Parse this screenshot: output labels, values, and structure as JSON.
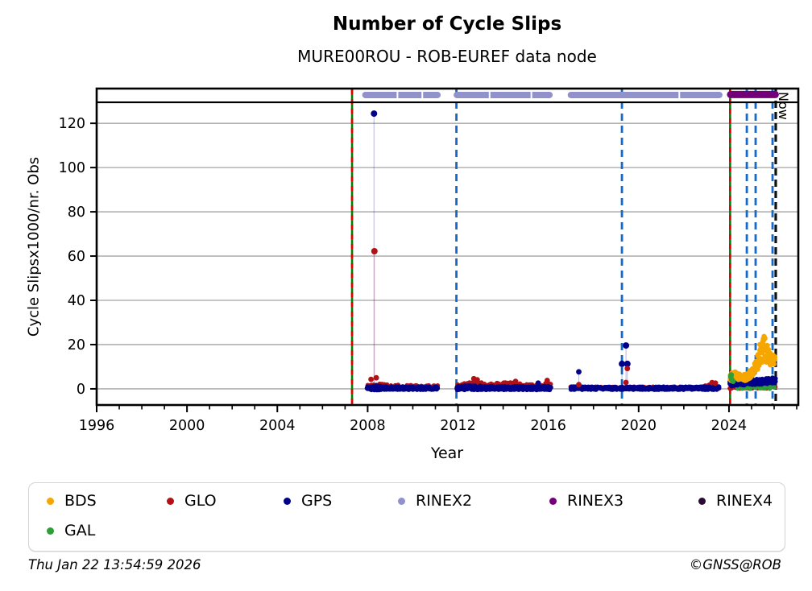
{
  "header": {
    "title": "Number of Cycle Slips",
    "subtitle": "MURE00ROU - ROB-EUREF data node"
  },
  "footer": {
    "timestamp": "Thu Jan 22 13:54:59 2026",
    "copyright": "©GNSS@ROB"
  },
  "legend": {
    "items": [
      {
        "label": "BDS",
        "color": "#f5a700"
      },
      {
        "label": "GLO",
        "color": "#b11117"
      },
      {
        "label": "GPS",
        "color": "#00008b"
      },
      {
        "label": "RINEX2",
        "color": "#9191cc"
      },
      {
        "label": "RINEX3",
        "color": "#730078"
      },
      {
        "label": "RINEX4",
        "color": "#2b0a33"
      },
      {
        "label": "GAL",
        "color": "#2e9e38"
      }
    ]
  },
  "chart_data": {
    "type": "scatter",
    "title": "Number of Cycle Slips",
    "subtitle": "MURE00ROU - ROB-EUREF data node",
    "xlabel": "Year",
    "ylabel": "Cycle Slipsx1000/nr. Obs",
    "xlim": [
      1996,
      2027.07
    ],
    "ylim": [
      -7.3,
      135.7
    ],
    "xticks": [
      1996,
      2000,
      2004,
      2008,
      2012,
      2016,
      2020,
      2024
    ],
    "x_minor_step": 1,
    "yticks": [
      0,
      20,
      40,
      60,
      80,
      100,
      120
    ],
    "grid": "horizontal-only",
    "grid_color": "#b3b3b3",
    "separator_y": 129.5,
    "legend_position": "below",
    "annotations": {
      "now_label": "Now",
      "now_x": 2026.07
    },
    "vlines": [
      {
        "x": 2007.31,
        "type": "green-red-event"
      },
      {
        "x": 2024.05,
        "type": "green-red-event"
      },
      {
        "x": 2011.93,
        "type": "blue-dashed"
      },
      {
        "x": 2019.26,
        "type": "blue-dashed"
      },
      {
        "x": 2024.79,
        "type": "blue-dashed"
      },
      {
        "x": 2025.18,
        "type": "blue-dashed"
      },
      {
        "x": 2025.93,
        "type": "blue-dashed"
      },
      {
        "x": 2026.07,
        "type": "now-black-dashed"
      }
    ],
    "vline_colors": {
      "green": "#008000",
      "red": "#dd0000",
      "blue": "#1569c7",
      "now": "#111111"
    },
    "top_bands": [
      {
        "name": "RINEX2",
        "color": "#9191cc",
        "y": 132.8,
        "segments": [
          [
            2007.9,
            2011.09
          ],
          [
            2011.95,
            2016.05
          ],
          [
            2017.0,
            2023.57
          ]
        ],
        "notches": [
          2009.32,
          2010.42,
          2013.4,
          2015.25,
          2021.8
        ]
      },
      {
        "name": "RINEX3",
        "color": "#730078",
        "y": 133.0,
        "segments": [
          [
            2024.07,
            2026.05
          ]
        ],
        "notches": []
      }
    ],
    "series_meta": {
      "draw_order": [
        "glo",
        "gal",
        "gps",
        "bds"
      ],
      "glo": {
        "label": "GLO",
        "color": "#b11117",
        "r": 2.9
      },
      "gal": {
        "label": "GAL",
        "color": "#2e9e38",
        "r": 2.8
      },
      "gps": {
        "label": "GPS",
        "color": "#00008b",
        "r": 3.0
      },
      "bds": {
        "label": "BDS",
        "color": "#f5a700",
        "r": 3.2
      }
    },
    "bands": {
      "glo": [
        {
          "x0": 2008.0,
          "x1": 2011.1,
          "density": 1.2,
          "profile": [
            [
              2008.0,
              1.0,
              0.9
            ],
            [
              2008.5,
              1.3,
              1.1
            ],
            [
              2009.2,
              1.0,
              0.8
            ],
            [
              2010.0,
              0.9,
              0.7
            ],
            [
              2011.1,
              0.8,
              0.7
            ]
          ]
        },
        {
          "x0": 2011.95,
          "x1": 2016.1,
          "density": 1.2,
          "profile": [
            [
              2011.95,
              1.1,
              1.0
            ],
            [
              2012.5,
              1.7,
              1.4
            ],
            [
              2012.8,
              2.2,
              1.7
            ],
            [
              2013.2,
              1.3,
              1.1
            ],
            [
              2013.8,
              1.6,
              1.2
            ],
            [
              2014.5,
              1.6,
              1.3
            ],
            [
              2015.1,
              1.1,
              0.9
            ],
            [
              2015.6,
              1.0,
              0.8
            ],
            [
              2016.0,
              1.6,
              1.4
            ],
            [
              2016.1,
              1.3,
              1.1
            ]
          ]
        },
        {
          "x0": 2017.0,
          "x1": 2019.02,
          "density": 1.0,
          "profile": [
            [
              2017.0,
              0.5,
              0.5
            ],
            [
              2019.02,
              0.45,
              0.45
            ]
          ]
        },
        {
          "x0": 2019.18,
          "x1": 2023.55,
          "density": 1.0,
          "profile": [
            [
              2019.18,
              0.45,
              0.45
            ],
            [
              2022.8,
              0.5,
              0.5
            ],
            [
              2023.25,
              1.3,
              1.0
            ],
            [
              2023.55,
              1.0,
              0.9
            ]
          ]
        },
        {
          "x0": 2024.05,
          "x1": 2026.05,
          "density": 1.5,
          "profile": [
            [
              2024.05,
              0.8,
              0.7
            ],
            [
              2025.0,
              0.9,
              0.8
            ],
            [
              2025.6,
              1.1,
              0.9
            ],
            [
              2026.05,
              1.5,
              1.0
            ]
          ]
        }
      ],
      "gal": [
        {
          "x0": 2024.3,
          "x1": 2026.0,
          "density": 0.5,
          "profile": [
            [
              2024.3,
              0.6,
              0.6
            ],
            [
              2026.0,
              0.8,
              0.8
            ]
          ]
        }
      ],
      "gps": [
        {
          "x0": 2007.97,
          "x1": 2011.1,
          "density": 2.2,
          "profile": [
            [
              2007.97,
              0.3,
              0.75
            ],
            [
              2008.3,
              0.45,
              1.0
            ],
            [
              2009.0,
              0.3,
              0.65
            ],
            [
              2010.0,
              0.25,
              0.6
            ],
            [
              2011.1,
              0.25,
              0.6
            ]
          ]
        },
        {
          "x0": 2011.95,
          "x1": 2016.1,
          "density": 2.2,
          "profile": [
            [
              2011.95,
              0.4,
              0.85
            ],
            [
              2012.5,
              0.55,
              1.0
            ],
            [
              2013.0,
              0.4,
              0.85
            ],
            [
              2014.0,
              0.35,
              0.8
            ],
            [
              2015.0,
              0.3,
              0.75
            ],
            [
              2016.1,
              0.4,
              0.85
            ]
          ]
        },
        {
          "x0": 2017.0,
          "x1": 2019.02,
          "density": 2.2,
          "profile": [
            [
              2017.0,
              0.3,
              0.65
            ],
            [
              2019.02,
              0.25,
              0.6
            ]
          ]
        },
        {
          "x0": 2019.18,
          "x1": 2023.55,
          "density": 2.2,
          "profile": [
            [
              2019.18,
              0.25,
              0.6
            ],
            [
              2021.0,
              0.25,
              0.6
            ],
            [
              2023.0,
              0.3,
              0.65
            ],
            [
              2023.55,
              0.35,
              0.75
            ]
          ]
        },
        {
          "x0": 2024.05,
          "x1": 2026.05,
          "density": 2.0,
          "profile": [
            [
              2024.05,
              2.2,
              1.2
            ],
            [
              2024.5,
              2.8,
              1.2
            ],
            [
              2024.9,
              3.1,
              1.3
            ],
            [
              2025.4,
              3.1,
              1.3
            ],
            [
              2025.8,
              3.5,
              1.4
            ],
            [
              2026.05,
              4.2,
              1.5
            ]
          ]
        }
      ],
      "bds": [
        {
          "x0": 2024.05,
          "x1": 2026.02,
          "density": 3.0,
          "profile": [
            [
              2024.05,
              5.0,
              1.8
            ],
            [
              2024.3,
              6.0,
              1.8
            ],
            [
              2024.55,
              5.4,
              1.5
            ],
            [
              2024.75,
              5.2,
              1.5
            ],
            [
              2024.95,
              6.8,
              1.9
            ],
            [
              2025.1,
              8.5,
              2.4
            ],
            [
              2025.25,
              11.5,
              3.2
            ],
            [
              2025.4,
              16.5,
              5.5
            ],
            [
              2025.55,
              18.5,
              5.5
            ],
            [
              2025.7,
              16.0,
              4.5
            ],
            [
              2025.85,
              14.0,
              3.5
            ],
            [
              2026.02,
              13.0,
              1.8
            ]
          ]
        }
      ]
    },
    "outliers": [
      {
        "series": "gps",
        "x": 2008.28,
        "y": 124.4,
        "stem": true
      },
      {
        "series": "glo",
        "x": 2008.3,
        "y": 62.2,
        "stem": true
      },
      {
        "series": "glo",
        "x": 2008.15,
        "y": 4.3,
        "stem": false
      },
      {
        "series": "glo",
        "x": 2008.38,
        "y": 5.0,
        "stem": false
      },
      {
        "series": "glo",
        "x": 2012.7,
        "y": 4.6,
        "stem": false
      },
      {
        "series": "glo",
        "x": 2012.85,
        "y": 4.1,
        "stem": false
      },
      {
        "series": "glo",
        "x": 2014.55,
        "y": 3.4,
        "stem": false
      },
      {
        "series": "gps",
        "x": 2015.55,
        "y": 2.6,
        "stem": false
      },
      {
        "series": "glo",
        "x": 2015.95,
        "y": 3.8,
        "stem": false
      },
      {
        "series": "gps",
        "x": 2017.35,
        "y": 7.7,
        "stem": true
      },
      {
        "series": "glo",
        "x": 2017.35,
        "y": 1.9,
        "stem": false
      },
      {
        "series": "gps",
        "x": 2019.26,
        "y": 11.3,
        "stem": true
      },
      {
        "series": "gps",
        "x": 2019.44,
        "y": 19.6,
        "stem": true
      },
      {
        "series": "gps",
        "x": 2019.5,
        "y": 11.3,
        "stem": true
      },
      {
        "series": "glo",
        "x": 2019.5,
        "y": 9.2,
        "stem": false
      },
      {
        "series": "glo",
        "x": 2019.44,
        "y": 2.9,
        "stem": false
      },
      {
        "series": "glo",
        "x": 2023.25,
        "y": 2.8,
        "stem": false
      },
      {
        "series": "glo",
        "x": 2023.4,
        "y": 2.6,
        "stem": false
      },
      {
        "series": "gal",
        "x": 2024.08,
        "y": 5.5,
        "stem": false
      },
      {
        "series": "gal",
        "x": 2024.1,
        "y": 6.3,
        "stem": false
      },
      {
        "series": "gal",
        "x": 2024.12,
        "y": 4.2,
        "stem": false
      },
      {
        "series": "gal",
        "x": 2024.18,
        "y": 3.4,
        "stem": false
      }
    ]
  }
}
